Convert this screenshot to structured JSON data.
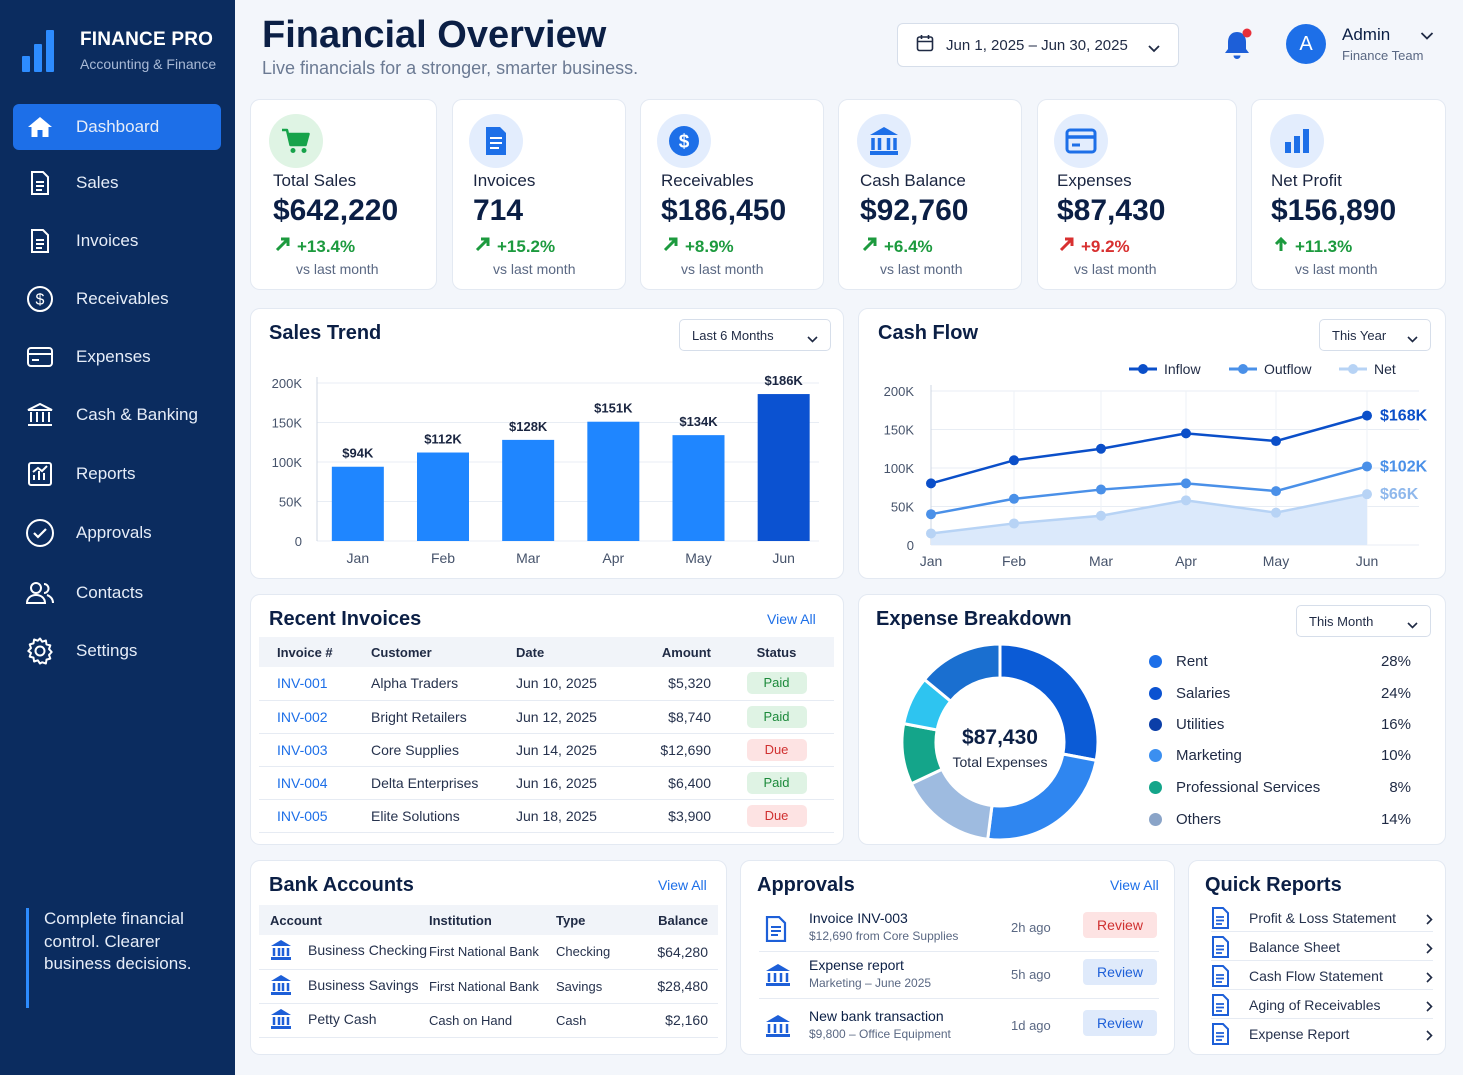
{
  "brand": {
    "name": "FINANCE PRO",
    "sub": "Accounting & Finance"
  },
  "nav": [
    {
      "label": "Dashboard",
      "icon": "home-icon"
    },
    {
      "label": "Sales",
      "icon": "document-icon"
    },
    {
      "label": "Invoices",
      "icon": "document-icon"
    },
    {
      "label": "Receivables",
      "icon": "dollar-icon"
    },
    {
      "label": "Expenses",
      "icon": "card-icon"
    },
    {
      "label": "Cash & Banking",
      "icon": "bank-icon"
    },
    {
      "label": "Reports",
      "icon": "report-icon"
    },
    {
      "label": "Approvals",
      "icon": "check-circle-icon"
    },
    {
      "label": "Contacts",
      "icon": "users-icon"
    },
    {
      "label": "Settings",
      "icon": "gear-icon"
    }
  ],
  "tagline": "Complete financial control. Clearer business decisions.",
  "header": {
    "title": "Financial Overview",
    "subtitle": "Live financials for a stronger, smarter business.",
    "date_range": "Jun 1, 2025 – Jun 30, 2025",
    "user_initial": "A",
    "user_name": "Admin",
    "user_role": "Finance Team"
  },
  "kpis": [
    {
      "label": "Total Sales",
      "value": "$642,220",
      "change": "+13.4%",
      "direction": "up",
      "compare": "vs last month",
      "color": "#1c9a3e",
      "icon": "cart-icon"
    },
    {
      "label": "Invoices",
      "value": "714",
      "change": "+15.2%",
      "direction": "up",
      "compare": "vs last month",
      "color": "#1d6fe8",
      "icon": "invoice-icon"
    },
    {
      "label": "Receivables",
      "value": "$186,450",
      "change": "+8.9%",
      "direction": "up",
      "compare": "vs last month",
      "color": "#1d6fe8",
      "icon": "dollar-icon"
    },
    {
      "label": "Cash Balance",
      "value": "$92,760",
      "change": "+6.4%",
      "direction": "up",
      "compare": "vs last month",
      "color": "#1d6fe8",
      "icon": "bank-icon"
    },
    {
      "label": "Expenses",
      "value": "$87,430",
      "change": "+9.2%",
      "direction": "up-bad",
      "compare": "vs last month",
      "color": "#1d6fe8",
      "icon": "card-icon"
    },
    {
      "label": "Net Profit",
      "value": "$156,890",
      "change": "+11.3%",
      "direction": "up",
      "compare": "vs last month",
      "color": "#1d6fe8",
      "icon": "bar-chart-icon"
    }
  ],
  "sales_trend": {
    "title": "Sales Trend",
    "filter": "Last 6 Months"
  },
  "cash_flow": {
    "title": "Cash Flow",
    "filter": "This Year"
  },
  "chart_data": [
    {
      "type": "bar",
      "title": "Sales Trend",
      "categories": [
        "Jan",
        "Feb",
        "Mar",
        "Apr",
        "May",
        "Jun"
      ],
      "values": [
        94,
        112,
        128,
        151,
        134,
        186
      ],
      "data_labels": [
        "$94K",
        "$112K",
        "$128K",
        "$151K",
        "$134K",
        "$186K"
      ],
      "yticks": [
        "0",
        "50K",
        "100K",
        "150K",
        "200K"
      ],
      "ylim": [
        0,
        200
      ],
      "grid": true,
      "colors": {
        "bar": "#1f86ff",
        "highlight": "#0b52d1"
      }
    },
    {
      "type": "line",
      "title": "Cash Flow",
      "x": [
        "Jan",
        "Feb",
        "Mar",
        "Apr",
        "May",
        "Jun"
      ],
      "yticks": [
        "0",
        "50K",
        "100K",
        "150K",
        "200K"
      ],
      "ylim": [
        0,
        200
      ],
      "legend": "top-right",
      "grid": true,
      "series": [
        {
          "name": "Inflow",
          "values": [
            80,
            110,
            125,
            145,
            135,
            168
          ],
          "end_label": "$168K",
          "color": "#0b4fc9"
        },
        {
          "name": "Outflow",
          "values": [
            40,
            60,
            72,
            80,
            70,
            102
          ],
          "end_label": "$102K",
          "color": "#4a90e8"
        },
        {
          "name": "Net",
          "values": [
            15,
            28,
            38,
            58,
            42,
            66
          ],
          "end_label": "$66K",
          "color": "#b7d3f5"
        }
      ]
    },
    {
      "type": "pie",
      "title": "Expense Breakdown",
      "center_value": "$87,430",
      "center_label": "Total Expenses",
      "slices": [
        {
          "label": "Rent",
          "value": 28,
          "pct": "28%",
          "color": "#0b5bd6"
        },
        {
          "label": "Salaries",
          "value": 24,
          "pct": "24%",
          "color": "#2f86f0"
        },
        {
          "label": "Utilities",
          "value": 16,
          "pct": "16%",
          "color": "#9ebbe0"
        },
        {
          "label": "Marketing",
          "value": 10,
          "pct": "10%",
          "color": "#14a58a"
        },
        {
          "label": "Professional Services",
          "value": 8,
          "pct": "8%",
          "color": "#2ec4f0"
        },
        {
          "label": "Others",
          "value": 14,
          "pct": "14%",
          "color": "#1a6fd0"
        }
      ],
      "legend_order": [
        {
          "label": "Rent",
          "pct": "28%",
          "color": "#1d6fe8"
        },
        {
          "label": "Salaries",
          "pct": "24%",
          "color": "#0b52d1"
        },
        {
          "label": "Utilities",
          "pct": "16%",
          "color": "#0b3ea8"
        },
        {
          "label": "Marketing",
          "pct": "10%",
          "color": "#3b8ff0"
        },
        {
          "label": "Professional Services",
          "pct": "8%",
          "color": "#14a58a"
        },
        {
          "label": "Others",
          "pct": "14%",
          "color": "#8aa4c8"
        }
      ]
    }
  ],
  "recent_invoices": {
    "title": "Recent Invoices",
    "view_all": "View All",
    "columns": [
      "Invoice #",
      "Customer",
      "Date",
      "Amount",
      "Status"
    ],
    "rows": [
      {
        "id": "INV-001",
        "customer": "Alpha Traders",
        "date": "Jun 10, 2025",
        "amount": "$5,320",
        "status": "Paid"
      },
      {
        "id": "INV-002",
        "customer": "Bright Retailers",
        "date": "Jun 12, 2025",
        "amount": "$8,740",
        "status": "Paid"
      },
      {
        "id": "INV-003",
        "customer": "Core Supplies",
        "date": "Jun 14, 2025",
        "amount": "$12,690",
        "status": "Due"
      },
      {
        "id": "INV-004",
        "customer": "Delta Enterprises",
        "date": "Jun 16, 2025",
        "amount": "$6,400",
        "status": "Paid"
      },
      {
        "id": "INV-005",
        "customer": "Elite Solutions",
        "date": "Jun 18, 2025",
        "amount": "$3,900",
        "status": "Due"
      }
    ]
  },
  "expense_breakdown": {
    "title": "Expense Breakdown",
    "filter": "This Month"
  },
  "bank_accounts": {
    "title": "Bank Accounts",
    "view_all": "View All",
    "columns": [
      "Account",
      "Institution",
      "Type",
      "Balance"
    ],
    "rows": [
      {
        "account": "Business Checking",
        "institution": "First National Bank",
        "type": "Checking",
        "balance": "$64,280"
      },
      {
        "account": "Business Savings",
        "institution": "First National Bank",
        "type": "Savings",
        "balance": "$28,480"
      },
      {
        "account": "Petty Cash",
        "institution": "Cash on Hand",
        "type": "Cash",
        "balance": "$2,160"
      }
    ]
  },
  "approvals": {
    "title": "Approvals",
    "view_all": "View All",
    "items": [
      {
        "title": "Invoice INV-003",
        "sub": "$12,690 from Core Supplies",
        "time": "2h ago",
        "action": "Review",
        "style": "red",
        "icon": "invoice-icon"
      },
      {
        "title": "Expense report",
        "sub": "Marketing – June 2025",
        "time": "5h ago",
        "action": "Review",
        "style": "blue",
        "icon": "bank-icon"
      },
      {
        "title": "New bank transaction",
        "sub": "$9,800 – Office Equipment",
        "time": "1d ago",
        "action": "Review",
        "style": "blue",
        "icon": "bank-icon"
      }
    ]
  },
  "quick_reports": {
    "title": "Quick Reports",
    "items": [
      "Profit & Loss Statement",
      "Balance Sheet",
      "Cash Flow Statement",
      "Aging of Receivables",
      "Expense Report"
    ]
  }
}
